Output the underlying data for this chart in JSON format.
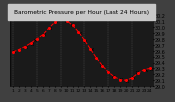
{
  "title": "Barometric Pressure per Hour (Last 24 Hours)",
  "hours": [
    0,
    1,
    2,
    3,
    4,
    5,
    6,
    7,
    8,
    9,
    10,
    11,
    12,
    13,
    14,
    15,
    16,
    17,
    18,
    19,
    20,
    21,
    22,
    23
  ],
  "pressure": [
    29.58,
    29.62,
    29.67,
    29.73,
    29.8,
    29.87,
    29.98,
    30.08,
    30.14,
    30.11,
    30.03,
    29.92,
    29.78,
    29.63,
    29.48,
    29.35,
    29.24,
    29.16,
    29.11,
    29.1,
    29.14,
    29.22,
    29.28,
    29.3
  ],
  "line_color": "#ff0000",
  "dot_color": "#000000",
  "bg_color": "#404040",
  "plot_bg_color": "#1a1a1a",
  "grid_color": "#808080",
  "text_color": "#000000",
  "title_bg": "#c0c0c0",
  "ylim_min": 29.0,
  "ylim_max": 30.2,
  "ytick_step": 0.1,
  "ylabel_fontsize": 3.5,
  "xlabel_fontsize": 3.2,
  "title_fontsize": 4.2,
  "line_width": 0.7,
  "marker_size": 1.2,
  "dot_marker_size": 2.0
}
